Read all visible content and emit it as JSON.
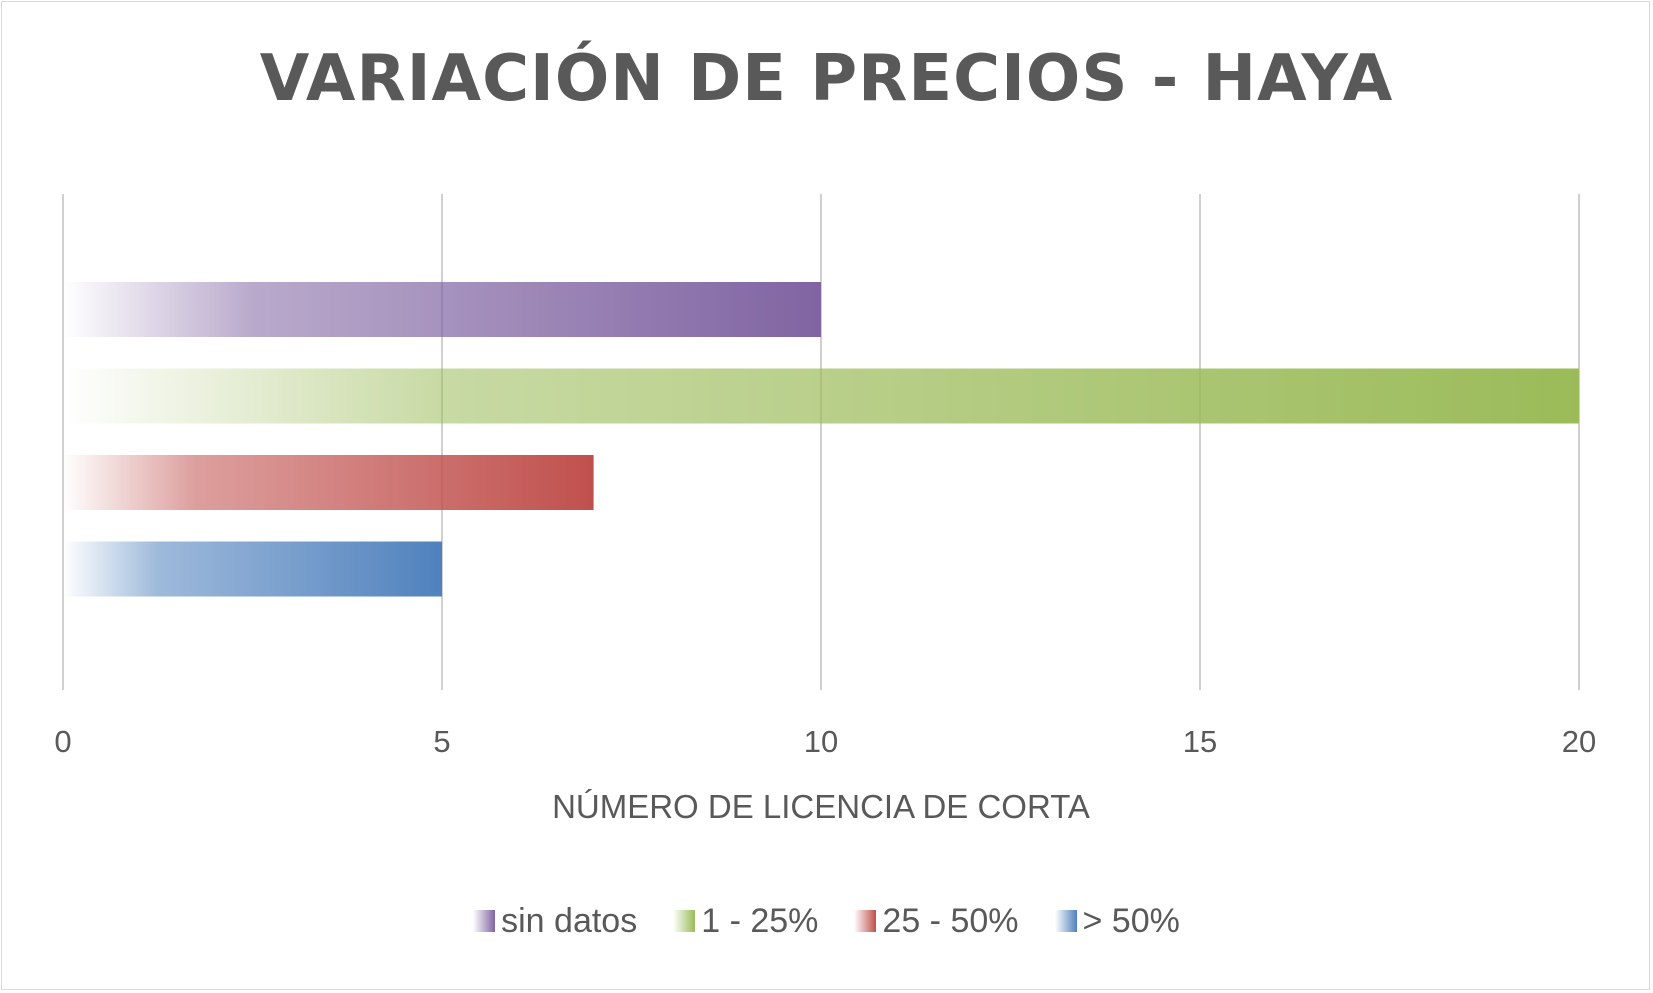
{
  "chart_data": {
    "type": "bar",
    "orientation": "horizontal",
    "title": "VARIACIÓN DE PRECIOS - HAYA",
    "xlabel": "NÚMERO DE LICENCIA DE CORTA",
    "ylabel": "",
    "xlim": [
      0,
      20
    ],
    "xticks": [
      "0",
      "5",
      "10",
      "15",
      "20"
    ],
    "grid": "vertical",
    "legend_position": "bottom",
    "series": [
      {
        "name": "sin datos",
        "value": 10,
        "color": "#8064a2"
      },
      {
        "name": "1 - 25%",
        "value": 20,
        "color": "#9bbb59"
      },
      {
        "name": "25 - 50%",
        "value": 7,
        "color": "#c0504d"
      },
      {
        "name": "> 50%",
        "value": 5,
        "color": "#4f81bd"
      }
    ]
  }
}
